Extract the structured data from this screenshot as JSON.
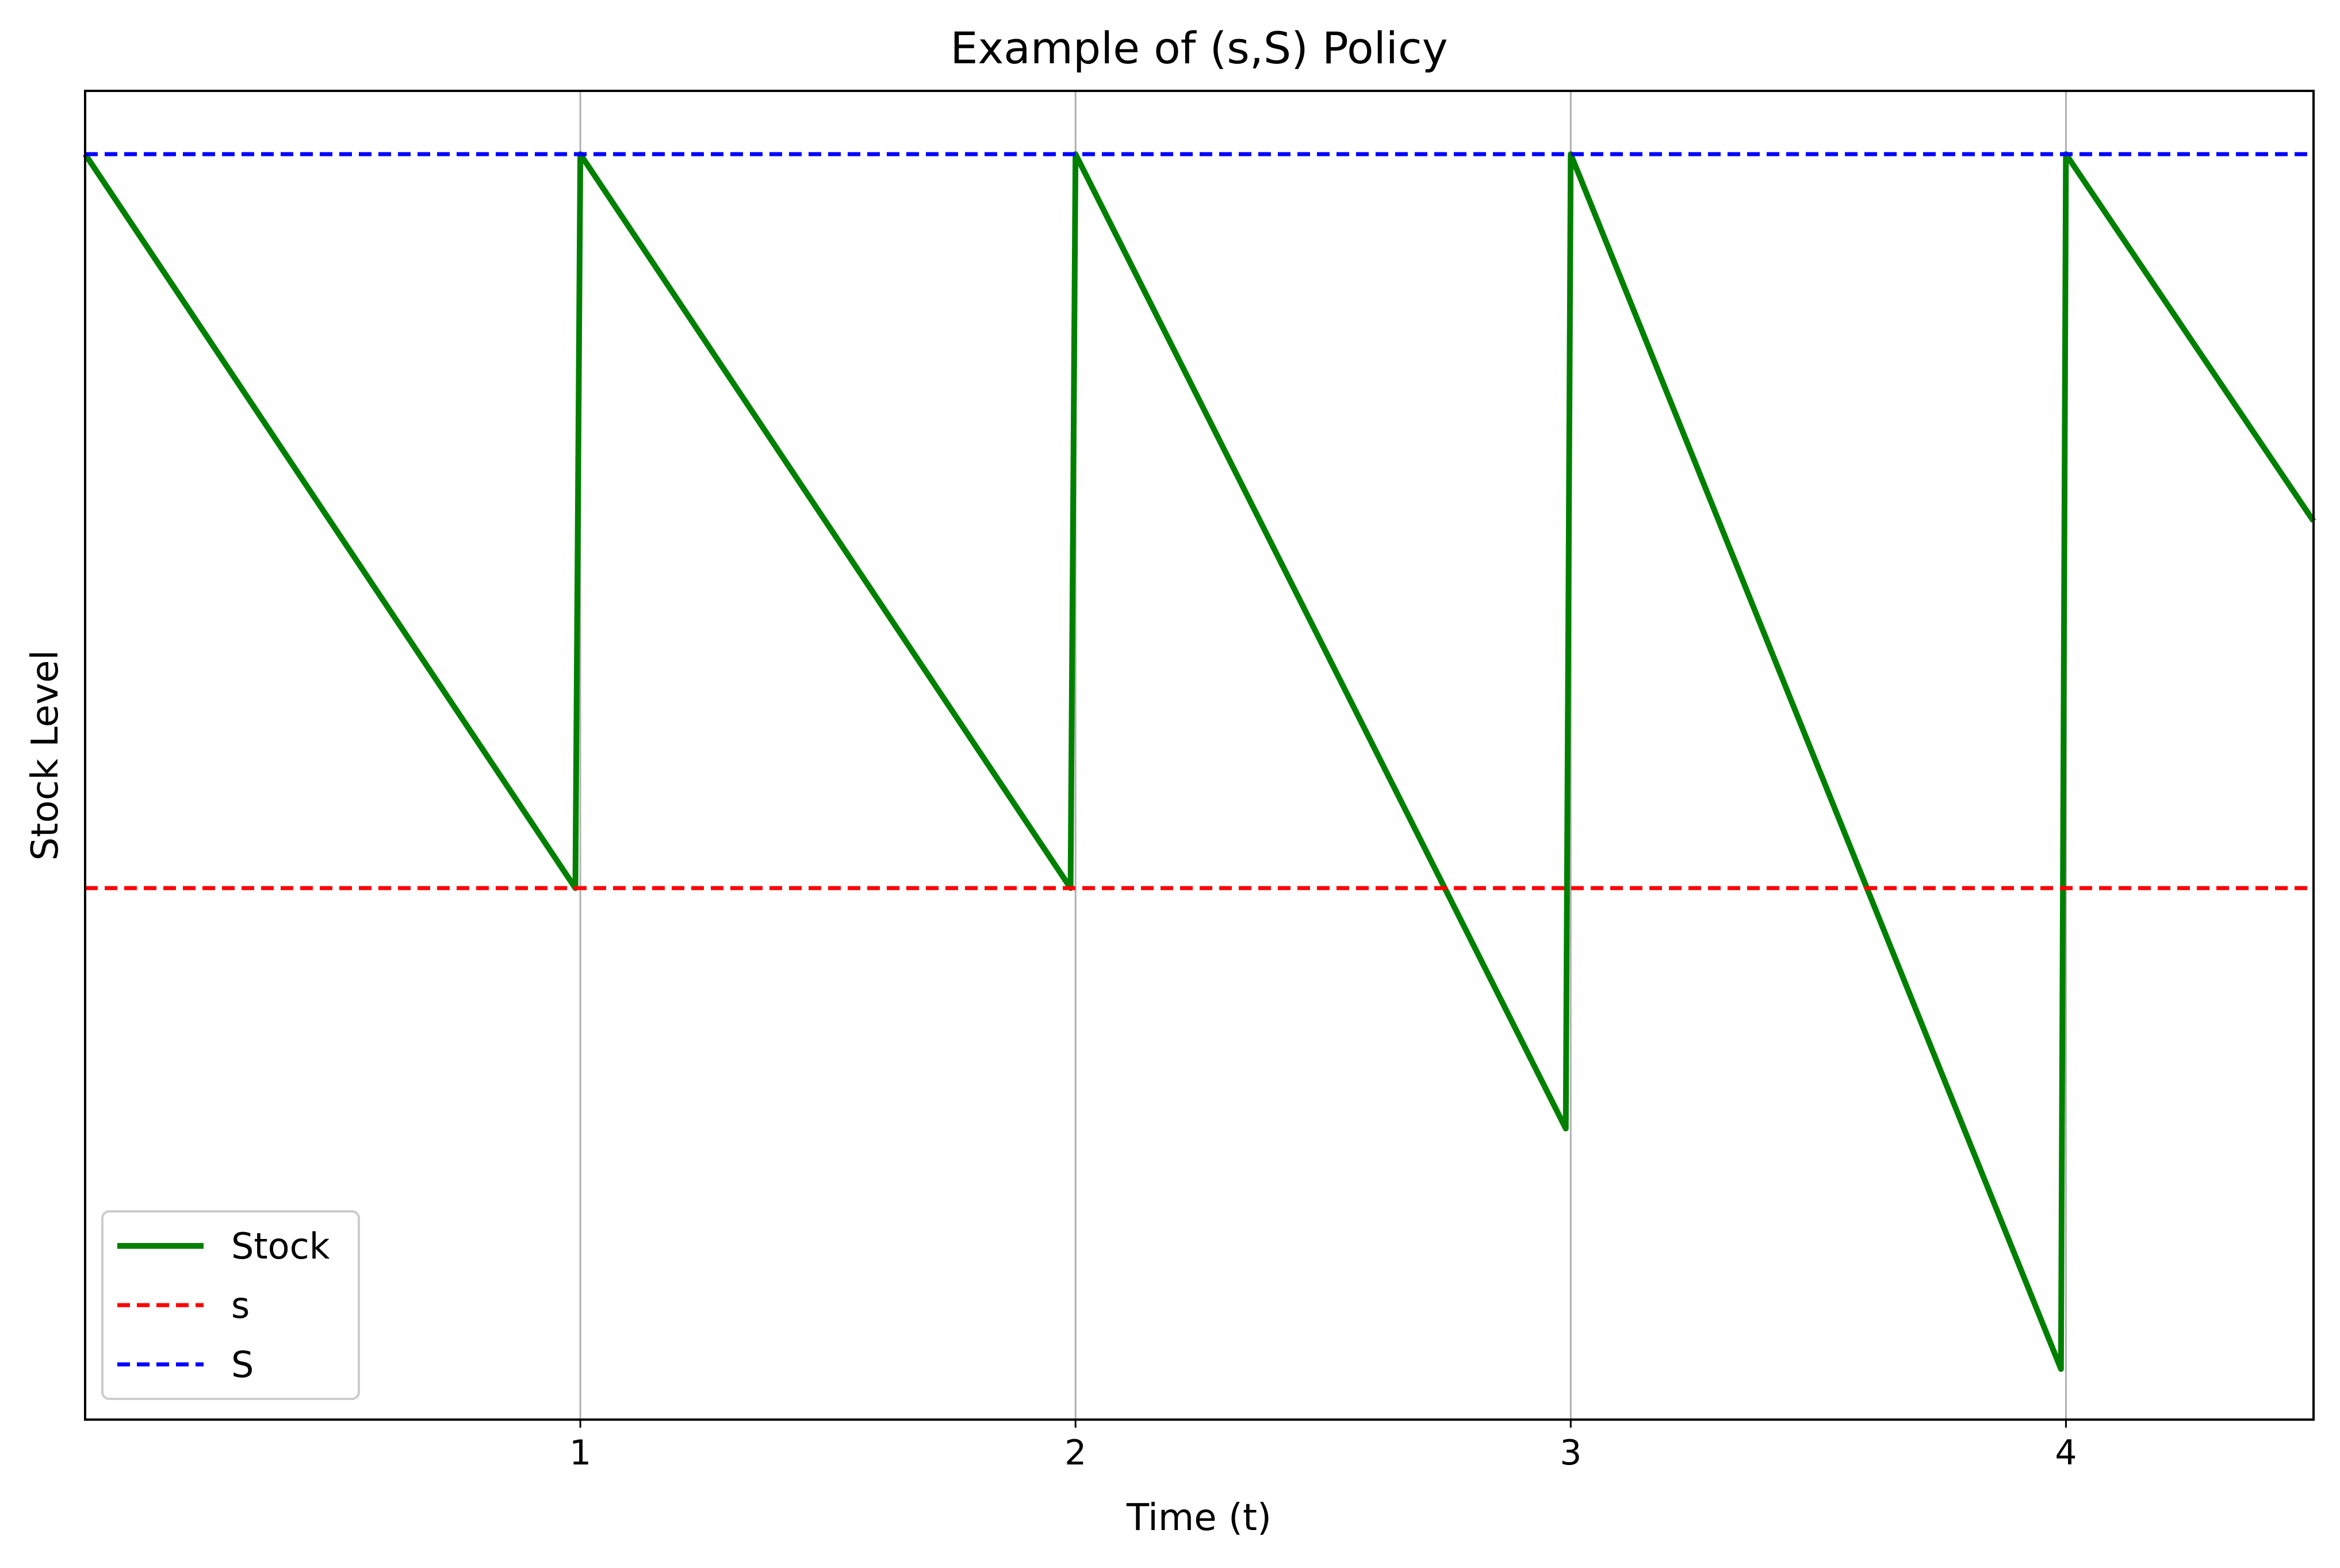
{
  "chart_data": {
    "type": "line",
    "title": "Example of (s,S) Policy",
    "xlabel": "Time (t)",
    "ylabel": "Stock Level",
    "xlim": [
      0,
      4.5
    ],
    "ylim": [
      -15,
      90
    ],
    "xticks": [
      {
        "value": 1,
        "label": "1"
      },
      {
        "value": 2,
        "label": "2"
      },
      {
        "value": 3,
        "label": "3"
      },
      {
        "value": 4,
        "label": "4"
      }
    ],
    "yticks_visible": false,
    "grid": "x-only",
    "legend_position": "lower-left",
    "series": [
      {
        "name": "Stock",
        "style": "solid",
        "color": "#008000",
        "x": [
          0,
          0.99,
          1.0,
          1.99,
          2.0,
          2.99,
          3.0,
          3.99,
          4.0,
          4.5
        ],
        "y": [
          85,
          27,
          85,
          27,
          85,
          8,
          85,
          -11,
          85,
          56
        ]
      },
      {
        "name": "s",
        "style": "dashed",
        "color": "#ff0000",
        "constant": 27
      },
      {
        "name": "S",
        "style": "dashed",
        "color": "#0000ff",
        "constant": 85
      }
    ]
  }
}
